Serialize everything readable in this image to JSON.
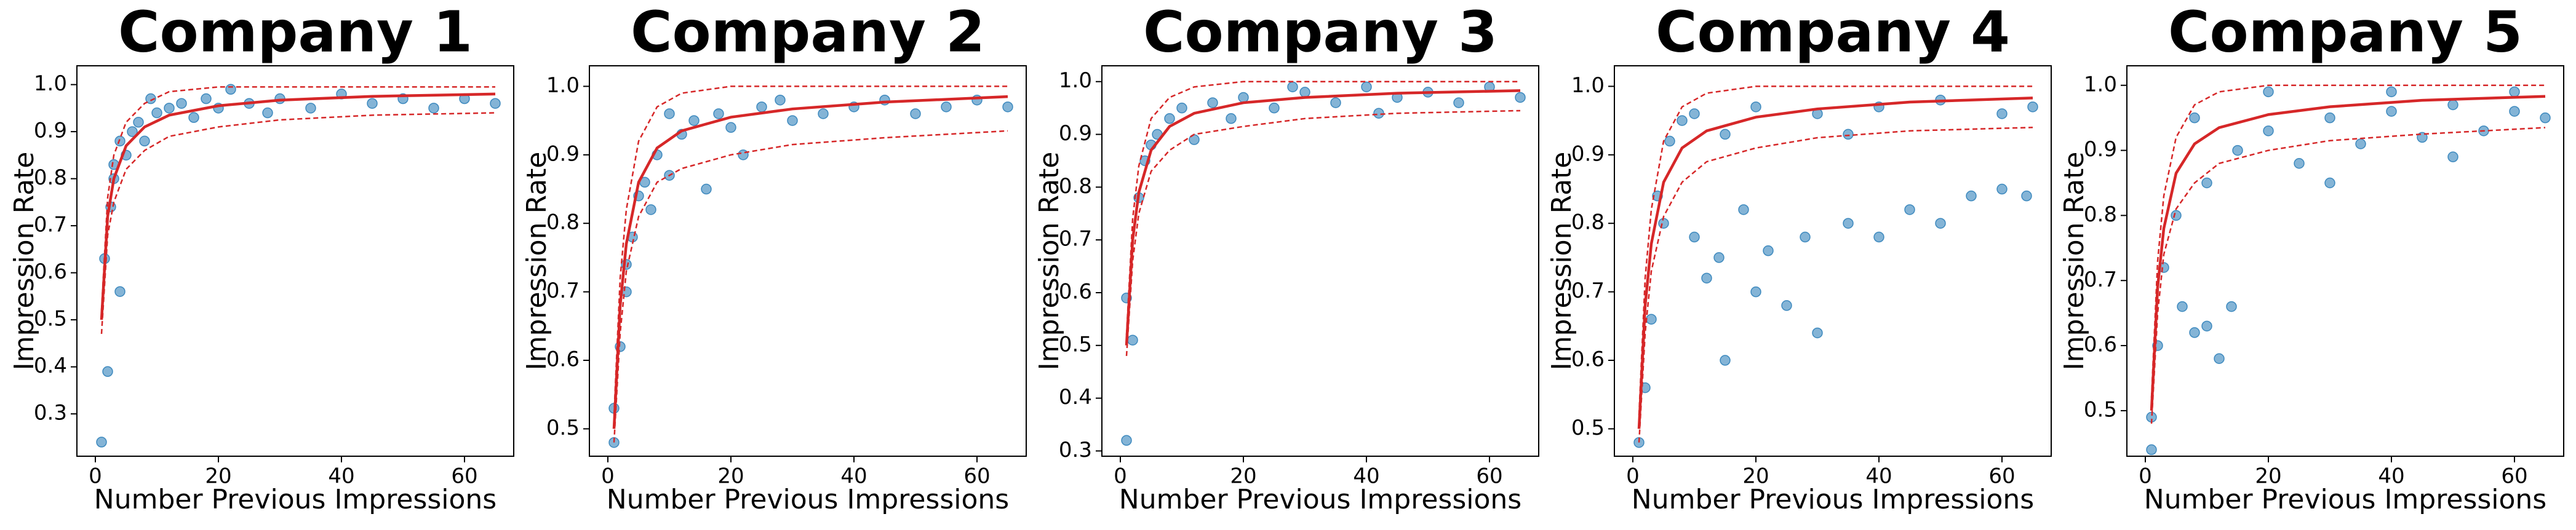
{
  "chart_data": [
    {
      "type": "scatter",
      "title": "Company 1",
      "x_label": "Number Previous Impressions",
      "y_label": "Impression Rate",
      "xlim": [
        -3,
        68
      ],
      "ylim": [
        0.21,
        1.04
      ],
      "xticks": [
        0,
        20,
        40,
        60
      ],
      "yticks": [
        0.3,
        0.4,
        0.5,
        0.6,
        0.7,
        0.8,
        0.9,
        {
          "value": 1,
          "label": "1.0"
        }
      ],
      "series": [
        {
          "type": "scatter",
          "color": "#1f77b4",
          "x": [
            1,
            1.5,
            2,
            2.5,
            3,
            3,
            4,
            4,
            5,
            6,
            7,
            8,
            10,
            12,
            14,
            16,
            18,
            20,
            25,
            30,
            35,
            40,
            45,
            50,
            55,
            60,
            65,
            9,
            22,
            28
          ],
          "values": [
            0.24,
            0.63,
            0.39,
            0.74,
            0.8,
            0.83,
            0.56,
            0.88,
            0.85,
            0.9,
            0.92,
            0.88,
            0.94,
            0.95,
            0.96,
            0.93,
            0.97,
            0.95,
            0.96,
            0.97,
            0.95,
            0.98,
            0.96,
            0.97,
            0.95,
            0.97,
            0.96,
            0.97,
            0.99,
            0.94
          ]
        },
        {
          "type": "line",
          "style": "solid",
          "color": "#d62728",
          "x": [
            1,
            2,
            3,
            5,
            8,
            12,
            20,
            30,
            45,
            65
          ],
          "values": [
            0.5,
            0.72,
            0.8,
            0.87,
            0.91,
            0.935,
            0.955,
            0.967,
            0.975,
            0.98
          ]
        },
        {
          "type": "line",
          "style": "dashed",
          "color": "#d62728",
          "x": [
            1,
            2,
            3,
            5,
            8,
            12,
            20,
            30,
            45,
            65
          ],
          "values": [
            0.52,
            0.76,
            0.85,
            0.92,
            0.96,
            0.985,
            0.995,
            0.995,
            0.995,
            0.995
          ]
        },
        {
          "type": "line",
          "style": "dashed",
          "color": "#d62728",
          "x": [
            1,
            2,
            3,
            5,
            8,
            12,
            20,
            30,
            45,
            65
          ],
          "values": [
            0.47,
            0.68,
            0.75,
            0.82,
            0.86,
            0.89,
            0.91,
            0.925,
            0.935,
            0.94
          ]
        }
      ]
    },
    {
      "type": "scatter",
      "title": "Company 2",
      "x_label": "Number Previous Impressions",
      "y_label": "Impression Rate",
      "xlim": [
        -3,
        68
      ],
      "ylim": [
        0.46,
        1.03
      ],
      "xticks": [
        0,
        20,
        40,
        60
      ],
      "yticks": [
        0.5,
        0.6,
        0.7,
        0.8,
        0.9,
        {
          "value": 1,
          "label": "1.0"
        }
      ],
      "series": [
        {
          "type": "scatter",
          "color": "#1f77b4",
          "x": [
            1,
            1,
            2,
            3,
            3,
            4,
            5,
            6,
            7,
            8,
            10,
            12,
            14,
            16,
            18,
            20,
            25,
            30,
            35,
            40,
            45,
            50,
            55,
            60,
            65,
            22,
            28,
            10
          ],
          "values": [
            0.48,
            0.53,
            0.62,
            0.7,
            0.74,
            0.78,
            0.84,
            0.86,
            0.82,
            0.9,
            0.87,
            0.93,
            0.95,
            0.85,
            0.96,
            0.94,
            0.97,
            0.95,
            0.96,
            0.97,
            0.98,
            0.96,
            0.97,
            0.98,
            0.97,
            0.9,
            0.98,
            0.96
          ]
        },
        {
          "type": "line",
          "style": "solid",
          "color": "#d62728",
          "x": [
            1,
            2,
            3,
            5,
            8,
            12,
            20,
            30,
            45,
            65
          ],
          "values": [
            0.5,
            0.68,
            0.77,
            0.86,
            0.91,
            0.935,
            0.955,
            0.967,
            0.977,
            0.985
          ]
        },
        {
          "type": "line",
          "style": "dashed",
          "color": "#d62728",
          "x": [
            1,
            2,
            3,
            5,
            8,
            12,
            20,
            30,
            45,
            65
          ],
          "values": [
            0.52,
            0.72,
            0.82,
            0.92,
            0.97,
            0.99,
            1.0,
            1.0,
            1.0,
            1.0
          ]
        },
        {
          "type": "line",
          "style": "dashed",
          "color": "#d62728",
          "x": [
            1,
            2,
            3,
            5,
            8,
            12,
            20,
            30,
            45,
            65
          ],
          "values": [
            0.48,
            0.64,
            0.73,
            0.81,
            0.86,
            0.88,
            0.9,
            0.915,
            0.925,
            0.935
          ]
        }
      ]
    },
    {
      "type": "scatter",
      "title": "Company 3",
      "x_label": "Number Previous Impressions",
      "y_label": "Impression Rate",
      "xlim": [
        -3,
        68
      ],
      "ylim": [
        0.29,
        1.03
      ],
      "xticks": [
        0,
        20,
        40,
        60
      ],
      "yticks": [
        0.3,
        0.4,
        0.5,
        0.6,
        0.7,
        0.8,
        0.9,
        {
          "value": 1,
          "label": "1.0"
        }
      ],
      "series": [
        {
          "type": "scatter",
          "color": "#1f77b4",
          "x": [
            1,
            1,
            2,
            3,
            4,
            5,
            6,
            8,
            10,
            12,
            15,
            20,
            25,
            30,
            35,
            40,
            45,
            50,
            55,
            60,
            65,
            18,
            28,
            42
          ],
          "values": [
            0.32,
            0.59,
            0.51,
            0.78,
            0.85,
            0.88,
            0.9,
            0.93,
            0.95,
            0.89,
            0.96,
            0.97,
            0.95,
            0.98,
            0.96,
            0.99,
            0.97,
            0.98,
            0.96,
            0.99,
            0.97,
            0.93,
            0.99,
            0.94
          ]
        },
        {
          "type": "line",
          "style": "solid",
          "color": "#d62728",
          "x": [
            1,
            2,
            3,
            5,
            8,
            12,
            20,
            30,
            45,
            65
          ],
          "values": [
            0.5,
            0.7,
            0.79,
            0.87,
            0.915,
            0.94,
            0.96,
            0.97,
            0.978,
            0.983
          ]
        },
        {
          "type": "line",
          "style": "dashed",
          "color": "#d62728",
          "x": [
            1,
            2,
            3,
            5,
            8,
            12,
            20,
            30,
            45,
            65
          ],
          "values": [
            0.52,
            0.74,
            0.84,
            0.93,
            0.97,
            0.99,
            1.0,
            1.0,
            1.0,
            1.0
          ]
        },
        {
          "type": "line",
          "style": "dashed",
          "color": "#d62728",
          "x": [
            1,
            2,
            3,
            5,
            8,
            12,
            20,
            30,
            45,
            65
          ],
          "values": [
            0.48,
            0.66,
            0.75,
            0.83,
            0.87,
            0.9,
            0.915,
            0.93,
            0.94,
            0.945
          ]
        }
      ]
    },
    {
      "type": "scatter",
      "title": "Company 4",
      "x_label": "Number Previous Impressions",
      "y_label": "Impression Rate",
      "xlim": [
        -3,
        68
      ],
      "ylim": [
        0.46,
        1.03
      ],
      "xticks": [
        0,
        20,
        40,
        60
      ],
      "yticks": [
        0.5,
        0.6,
        0.7,
        0.8,
        0.9,
        {
          "value": 1,
          "label": "1.0"
        }
      ],
      "series": [
        {
          "type": "scatter",
          "color": "#1f77b4",
          "x": [
            1,
            2,
            3,
            4,
            5,
            6,
            8,
            10,
            12,
            14,
            15,
            18,
            20,
            22,
            25,
            28,
            30,
            35,
            40,
            45,
            50,
            55,
            60,
            64,
            10,
            20,
            30,
            40,
            50,
            60,
            65,
            15,
            35
          ],
          "values": [
            0.48,
            0.56,
            0.66,
            0.84,
            0.8,
            0.92,
            0.95,
            0.78,
            0.72,
            0.75,
            0.6,
            0.82,
            0.7,
            0.76,
            0.68,
            0.78,
            0.64,
            0.8,
            0.78,
            0.82,
            0.8,
            0.84,
            0.85,
            0.84,
            0.96,
            0.97,
            0.96,
            0.97,
            0.98,
            0.96,
            0.97,
            0.93,
            0.93
          ]
        },
        {
          "type": "line",
          "style": "solid",
          "color": "#d62728",
          "x": [
            1,
            2,
            3,
            5,
            8,
            12,
            20,
            30,
            45,
            65
          ],
          "values": [
            0.5,
            0.68,
            0.77,
            0.86,
            0.91,
            0.935,
            0.955,
            0.967,
            0.977,
            0.983
          ]
        },
        {
          "type": "line",
          "style": "dashed",
          "color": "#d62728",
          "x": [
            1,
            2,
            3,
            5,
            8,
            12,
            20,
            30,
            45,
            65
          ],
          "values": [
            0.52,
            0.72,
            0.82,
            0.92,
            0.97,
            0.99,
            1.0,
            1.0,
            1.0,
            1.0
          ]
        },
        {
          "type": "line",
          "style": "dashed",
          "color": "#d62728",
          "x": [
            1,
            2,
            3,
            5,
            8,
            12,
            20,
            30,
            45,
            65
          ],
          "values": [
            0.48,
            0.64,
            0.73,
            0.81,
            0.86,
            0.89,
            0.91,
            0.925,
            0.935,
            0.94
          ]
        }
      ]
    },
    {
      "type": "scatter",
      "title": "Company 5",
      "x_label": "Number Previous Impressions",
      "y_label": "Impression Rate",
      "xlim": [
        -3,
        68
      ],
      "ylim": [
        0.43,
        1.03
      ],
      "xticks": [
        0,
        20,
        40,
        60
      ],
      "yticks": [
        0.5,
        0.6,
        0.7,
        0.8,
        0.9,
        {
          "value": 1,
          "label": "1.0"
        }
      ],
      "series": [
        {
          "type": "scatter",
          "color": "#1f77b4",
          "x": [
            1,
            1,
            2,
            3,
            5,
            6,
            8,
            10,
            12,
            14,
            10,
            15,
            20,
            25,
            30,
            35,
            40,
            45,
            50,
            55,
            60,
            65,
            8,
            20,
            40,
            60,
            30,
            50
          ],
          "values": [
            0.44,
            0.49,
            0.6,
            0.72,
            0.8,
            0.66,
            0.62,
            0.63,
            0.58,
            0.66,
            0.85,
            0.9,
            0.93,
            0.88,
            0.95,
            0.91,
            0.96,
            0.92,
            0.97,
            0.93,
            0.96,
            0.95,
            0.95,
            0.99,
            0.99,
            0.99,
            0.85,
            0.89
          ]
        },
        {
          "type": "line",
          "style": "solid",
          "color": "#d62728",
          "x": [
            1,
            2,
            3,
            5,
            8,
            12,
            20,
            30,
            45,
            65
          ],
          "values": [
            0.5,
            0.69,
            0.78,
            0.865,
            0.91,
            0.935,
            0.955,
            0.967,
            0.977,
            0.983
          ]
        },
        {
          "type": "line",
          "style": "dashed",
          "color": "#d62728",
          "x": [
            1,
            2,
            3,
            5,
            8,
            12,
            20,
            30,
            45,
            65
          ],
          "values": [
            0.52,
            0.73,
            0.83,
            0.92,
            0.97,
            0.99,
            1.0,
            1.0,
            1.0,
            1.0
          ]
        },
        {
          "type": "line",
          "style": "dashed",
          "color": "#d62728",
          "x": [
            1,
            2,
            3,
            5,
            8,
            12,
            20,
            30,
            45,
            65
          ],
          "values": [
            0.48,
            0.65,
            0.74,
            0.81,
            0.85,
            0.88,
            0.9,
            0.915,
            0.925,
            0.935
          ]
        }
      ]
    }
  ]
}
